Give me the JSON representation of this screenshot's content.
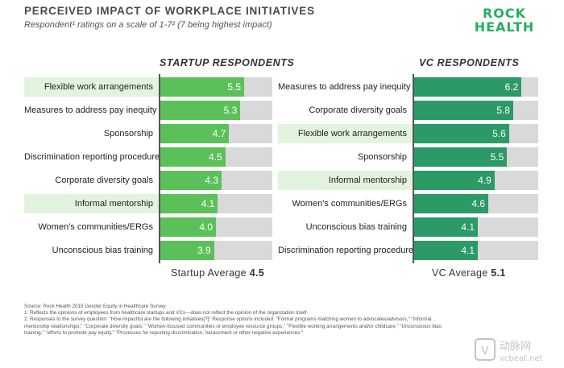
{
  "header": {
    "title": "PERCEIVED IMPACT OF WORKPLACE INITIATIVES",
    "subtitle": "Respondent¹ ratings on a scale of 1-7² (7 being highest impact)"
  },
  "logo": {
    "line1": "ROCK",
    "line2": "HEALTH"
  },
  "colors": {
    "startup_bar": "#5cc05a",
    "vc_bar": "#2b9a66",
    "track": "#d9d9d9",
    "highlight": "#e3f4de"
  },
  "chart_data": [
    {
      "type": "bar",
      "orientation": "horizontal",
      "title": "STARTUP RESPONDENTS",
      "categories": [
        "Flexible work arrangements",
        "Measures to address pay inequity",
        "Sponsorship",
        "Discrimination reporting procedures",
        "Corporate diversity goals",
        "Informal mentorship",
        "Women's communities/ERGs",
        "Unconscious bias training"
      ],
      "values": [
        5.5,
        5.3,
        4.7,
        4.5,
        4.3,
        4.1,
        4.0,
        3.9
      ],
      "value_labels": [
        "5.5",
        "5.3",
        "4.7",
        "4.5",
        "4.3",
        "4.1",
        "4.0",
        "3.9"
      ],
      "highlighted": [
        true,
        false,
        false,
        false,
        false,
        true,
        false,
        false
      ],
      "xlim": [
        1,
        7
      ],
      "average_label": "Startup Average",
      "average_value": "4.5"
    },
    {
      "type": "bar",
      "orientation": "horizontal",
      "title": "VC RESPONDENTS",
      "categories": [
        "Measures to address pay inequity",
        "Corporate diversity goals",
        "Flexible work arrangements",
        "Sponsorship",
        "Informal mentorship",
        "Women's communities/ERGs",
        "Unconscious bias training",
        "Discrimination reporting procedures"
      ],
      "values": [
        6.2,
        5.8,
        5.6,
        5.5,
        4.9,
        4.6,
        4.1,
        4.1
      ],
      "value_labels": [
        "6.2",
        "5.8",
        "5.6",
        "5.5",
        "4.9",
        "4.6",
        "4.1",
        "4.1"
      ],
      "highlighted": [
        false,
        false,
        true,
        false,
        true,
        false,
        false,
        false
      ],
      "xlim": [
        1,
        7
      ],
      "average_label": "VC Average",
      "average_value": "5.1"
    }
  ],
  "notes": {
    "source": "Source: Rock Health 2019 Gender Equity in Healthcare Survey",
    "note1": "1: Reflects the opinions of employees from healthcare startups and VCs—does not reflect the opinion of the organization itself.",
    "note2": "2: Responses to the survey question: \"How impactful are the following initiatives[?]\" Response options included: \"Formal programs matching women to advocates/advisors,\" \"Informal mentorship relationships,\" \"Corporate diversity goals,\" \"Women-focused communities or employee resource groups,\" \"Flexible working arrangements and/or childcare,\" \"Unconscious bias training,\" \"efforts to promote pay equity,\" \"Processes for reporting discrimination, harassment or other negative experiences.\""
  },
  "watermark": {
    "text": "动脉网",
    "url_text": "vcbeat.net"
  }
}
